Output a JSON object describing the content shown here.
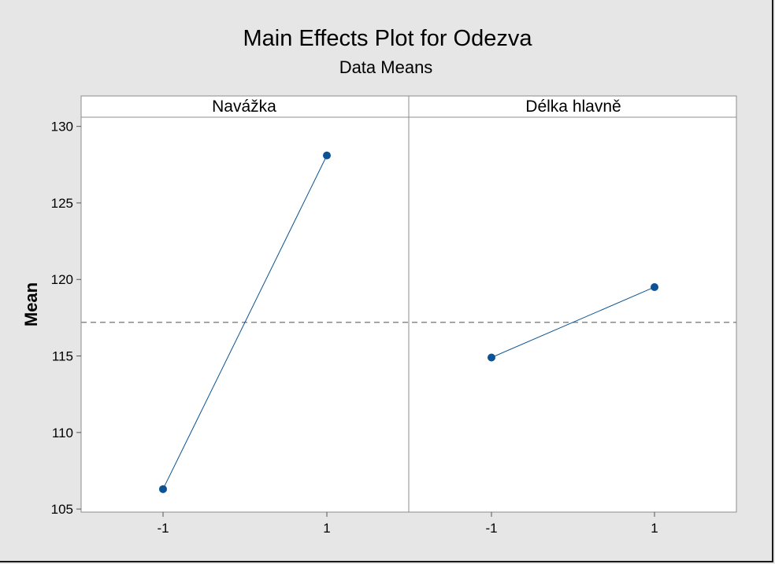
{
  "chart_data": {
    "type": "line",
    "title": "Main Effects Plot for Odezva",
    "subtitle": "Data Means",
    "ylabel": "Mean",
    "ylim": [
      104.8,
      130.6
    ],
    "yticks": [
      105,
      110,
      115,
      120,
      125,
      130
    ],
    "reference_mean": 117.2,
    "panels": [
      {
        "name": "Navážka",
        "categories": [
          "-1",
          "1"
        ],
        "values": [
          106.3,
          128.1
        ]
      },
      {
        "name": "Délka hlavně",
        "categories": [
          "-1",
          "1"
        ],
        "values": [
          114.9,
          119.5
        ]
      }
    ],
    "colors": {
      "series": "#0b5394",
      "reference": "#8a8a8a",
      "frame": "#8c8c8c"
    },
    "grid": false
  }
}
